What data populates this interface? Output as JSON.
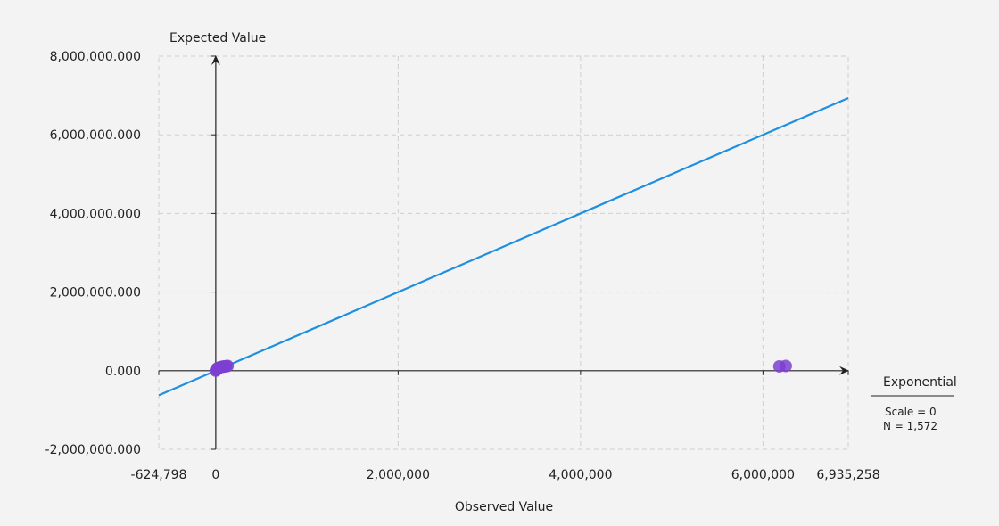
{
  "chart_data": {
    "type": "scatter",
    "xlabel": "Observed Value",
    "ylabel": "Expected Value",
    "xlim": [
      -624798,
      6935258
    ],
    "ylim": [
      -2000000,
      8000000
    ],
    "x_ticks": [
      {
        "value": -624798,
        "label": "-624,798"
      },
      {
        "value": 0,
        "label": "0"
      },
      {
        "value": 2000000,
        "label": "2,000,000"
      },
      {
        "value": 4000000,
        "label": "4,000,000"
      },
      {
        "value": 6000000,
        "label": "6,000,000"
      },
      {
        "value": 6935258,
        "label": "6,935,258"
      }
    ],
    "y_ticks": [
      {
        "value": -2000000,
        "label": "-2,000,000.000"
      },
      {
        "value": 0,
        "label": "0.000"
      },
      {
        "value": 2000000,
        "label": "2,000,000.000"
      },
      {
        "value": 4000000,
        "label": "4,000,000.000"
      },
      {
        "value": 6000000,
        "label": "6,000,000.000"
      },
      {
        "value": 8000000,
        "label": "8,000,000.000"
      }
    ],
    "grid": true,
    "reference_line": {
      "x": [
        -624798,
        6935258
      ],
      "y": [
        -624798,
        6935258
      ],
      "color": "#1e8fe1"
    },
    "points": [
      {
        "x": 0,
        "y": 0
      },
      {
        "x": 5000,
        "y": 20000
      },
      {
        "x": 10000,
        "y": 40000
      },
      {
        "x": 15000,
        "y": 50000
      },
      {
        "x": 20000,
        "y": 60000
      },
      {
        "x": 30000,
        "y": 70000
      },
      {
        "x": 40000,
        "y": 80000
      },
      {
        "x": 55000,
        "y": 90000
      },
      {
        "x": 70000,
        "y": 100000
      },
      {
        "x": 85000,
        "y": 105000
      },
      {
        "x": 100000,
        "y": 110000
      },
      {
        "x": 115000,
        "y": 115000
      },
      {
        "x": 130000,
        "y": 120000
      },
      {
        "x": 6180000,
        "y": 110000
      },
      {
        "x": 6250000,
        "y": 120000
      }
    ],
    "point_color": "#7c3fd1",
    "legend": {
      "title": "Exponential",
      "lines": [
        "Scale = 0",
        "N = 1,572"
      ],
      "placement": "right"
    }
  }
}
